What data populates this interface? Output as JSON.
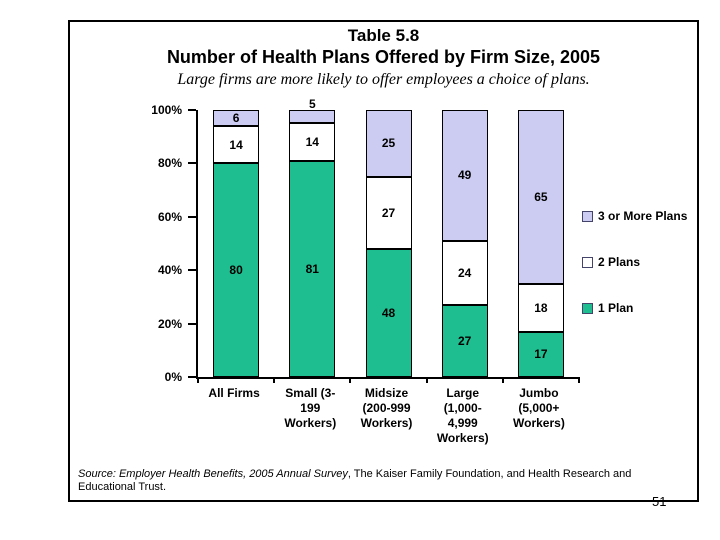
{
  "page": {
    "number": "51"
  },
  "header": {
    "table_label": "Table 5.8",
    "title": "Number of Health Plans Offered by Firm Size, 2005",
    "subtitle": "Large firms are more likely to offer employees a choice of plans."
  },
  "source": {
    "italic_part": "Source: Employer Health Benefits, 2005 Annual Survey",
    "regular_part": ", The Kaiser Family Foundation, and Health Research and Educational Trust."
  },
  "chart_data": {
    "type": "bar",
    "stacked": true,
    "title": "Number of Health Plans Offered by Firm Size, 2005",
    "categories": [
      "All Firms",
      "Small (3-199 Workers)",
      "Midsize (200-999 Workers)",
      "Large (1,000-4,999 Workers)",
      "Jumbo (5,000+ Workers)"
    ],
    "category_label_lines": [
      [
        "All Firms"
      ],
      [
        "Small (3-",
        "199",
        "Workers)"
      ],
      [
        "Midsize",
        "(200-999",
        "Workers)"
      ],
      [
        "Large",
        "(1,000-",
        "4,999",
        "Workers)"
      ],
      [
        "Jumbo",
        "(5,000+",
        "Workers)"
      ]
    ],
    "series": [
      {
        "name": "1 Plan",
        "color": "#1ebe90",
        "values": [
          80,
          81,
          48,
          27,
          17
        ]
      },
      {
        "name": "2 Plans",
        "color": "#ffffff",
        "values": [
          14,
          14,
          27,
          24,
          18
        ]
      },
      {
        "name": "3 or More Plans",
        "color": "#ccccf2",
        "values": [
          6,
          5,
          25,
          49,
          65
        ]
      }
    ],
    "yticks": [
      "0%",
      "20%",
      "40%",
      "60%",
      "80%",
      "100%"
    ],
    "ylim": [
      0,
      100
    ],
    "grid": false,
    "legend_position": "right",
    "legend_order_top_to_bottom": [
      "3 or More Plans",
      "2 Plans",
      "1 Plan"
    ]
  }
}
